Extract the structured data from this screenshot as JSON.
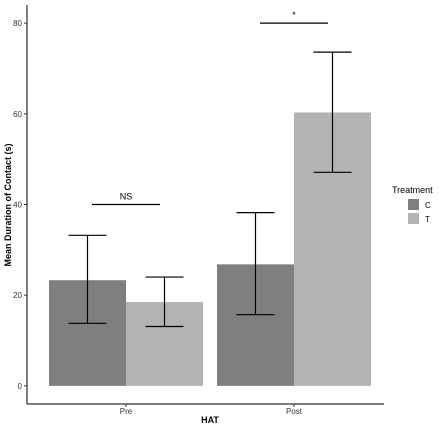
{
  "chart_data": {
    "type": "bar",
    "xlabel": "HAT",
    "ylabel": "Mean Duration of Contact (s)",
    "categories": [
      "Pre",
      "Post"
    ],
    "ylim": [
      -4,
      84
    ],
    "yticks": [
      0,
      20,
      40,
      60,
      80
    ],
    "grid": false,
    "legend": {
      "title": "Treatment",
      "position": "right"
    },
    "series": [
      {
        "name": "C",
        "color": "#7f7f7f",
        "values": [
          23.3,
          26.8
        ],
        "err_low": [
          13.8,
          15.7
        ],
        "err_high": [
          33.2,
          38.2
        ]
      },
      {
        "name": "T",
        "color": "#b3b3b3",
        "values": [
          18.5,
          60.3
        ],
        "err_low": [
          13.1,
          47.1
        ],
        "err_high": [
          24.0,
          73.6
        ]
      }
    ],
    "annotations": [
      {
        "text": "NS",
        "category": "Pre",
        "y": 40
      },
      {
        "text": "*",
        "category": "Post",
        "y": 80
      }
    ]
  }
}
